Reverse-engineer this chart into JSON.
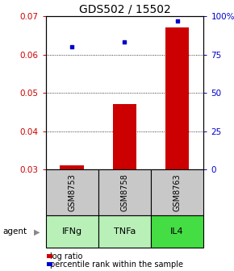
{
  "title": "GDS502 / 15502",
  "categories": [
    "IFNg",
    "TNFa",
    "IL4"
  ],
  "sample_ids": [
    "GSM8753",
    "GSM8758",
    "GSM8763"
  ],
  "log_ratios": [
    0.031,
    0.047,
    0.067
  ],
  "percentile_ranks": [
    80,
    83,
    97
  ],
  "ylim_left": [
    0.03,
    0.07
  ],
  "ylim_right": [
    0,
    100
  ],
  "yticks_left": [
    0.03,
    0.04,
    0.05,
    0.06,
    0.07
  ],
  "ytick_labels_left": [
    "0.03",
    "0.04",
    "0.05",
    "0.06",
    "0.07"
  ],
  "yticks_right": [
    0,
    25,
    50,
    75,
    100
  ],
  "ytick_labels_right": [
    "0",
    "25",
    "50",
    "75",
    "100%"
  ],
  "bar_color": "#cc0000",
  "point_color": "#0000cc",
  "sample_box_color": "#c8c8c8",
  "agent_box_colors": [
    "#b8f0b8",
    "#b8f0b8",
    "#44dd44"
  ],
  "agent_label": "agent",
  "legend_bar_label": "log ratio",
  "legend_point_label": "percentile rank within the sample",
  "title_fontsize": 10,
  "tick_fontsize": 7.5,
  "bar_width": 0.45
}
